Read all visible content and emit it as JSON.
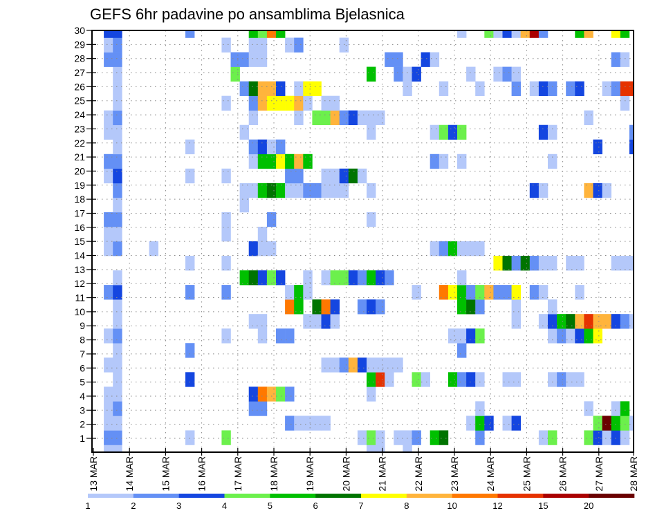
{
  "chart_data": {
    "type": "heatmap",
    "title": "GEFS 6hr padavine po ansamblima Bjelasnica",
    "xlabel": "",
    "ylabel": "",
    "x_unit": "6-hour steps from 13 MAR 00Z",
    "x_ticks": [
      "13 MAR",
      "14 MAR",
      "15 MAR",
      "16 MAR",
      "17 MAR",
      "18 MAR",
      "19 MAR",
      "20 MAR",
      "21 MAR",
      "22 MAR",
      "23 MAR",
      "24 MAR",
      "25 MAR",
      "26 MAR",
      "27 MAR",
      "28 MAR"
    ],
    "y_ticks": [
      "1",
      "2",
      "3",
      "4",
      "5",
      "6",
      "7",
      "8",
      "9",
      "10",
      "11",
      "12",
      "13",
      "14",
      "15",
      "16",
      "17",
      "18",
      "19",
      "20",
      "21",
      "22",
      "23",
      "24",
      "25",
      "26",
      "27",
      "28",
      "29",
      "30"
    ],
    "ylim": [
      1,
      30
    ],
    "columns": 60,
    "grid": true,
    "colorbar": {
      "placement": "bottom",
      "levels": [
        1,
        2,
        3,
        4,
        5,
        6,
        7,
        8,
        10,
        12,
        15,
        20
      ],
      "labels": [
        "1",
        "2",
        "3",
        "4",
        "5",
        "6",
        "7",
        "8",
        "10",
        "12",
        "15",
        "20"
      ],
      "colors": [
        "#b4c8fa",
        "#6490f5",
        "#1446e0",
        "#6cf04c",
        "#00c000",
        "#007400",
        "#ffff00",
        "#ffb43c",
        "#ff7800",
        "#e63200",
        "#aa0000",
        "#6a0000"
      ]
    },
    "rows": {
      "30": [
        [
          1,
          3
        ],
        [
          2,
          3
        ],
        [
          10,
          2
        ],
        [
          17,
          5
        ],
        [
          18,
          4
        ],
        [
          19,
          10
        ],
        [
          20,
          5
        ],
        [
          40,
          1
        ],
        [
          43,
          4
        ],
        [
          44,
          1
        ],
        [
          45,
          3
        ],
        [
          46,
          1
        ],
        [
          47,
          8
        ],
        [
          48,
          15
        ],
        [
          49,
          2
        ],
        [
          53,
          5
        ],
        [
          54,
          8
        ],
        [
          57,
          7
        ],
        [
          58,
          5
        ]
      ],
      "29": [
        [
          1,
          1
        ],
        [
          2,
          2
        ],
        [
          14,
          1
        ],
        [
          17,
          1
        ],
        [
          18,
          1
        ],
        [
          21,
          1
        ],
        [
          22,
          2
        ],
        [
          27,
          1
        ]
      ],
      "28": [
        [
          1,
          2
        ],
        [
          2,
          2
        ],
        [
          15,
          2
        ],
        [
          16,
          2
        ],
        [
          17,
          1
        ],
        [
          18,
          1
        ],
        [
          32,
          2
        ],
        [
          33,
          2
        ],
        [
          36,
          3
        ],
        [
          37,
          1
        ],
        [
          57,
          2
        ],
        [
          58,
          1
        ]
      ],
      "27": [
        [
          2,
          1
        ],
        [
          15,
          4
        ],
        [
          30,
          5
        ],
        [
          33,
          2
        ],
        [
          34,
          1
        ],
        [
          35,
          3
        ],
        [
          41,
          1
        ],
        [
          44,
          1
        ],
        [
          45,
          2
        ],
        [
          46,
          1
        ]
      ],
      "26": [
        [
          2,
          1
        ],
        [
          16,
          2
        ],
        [
          17,
          6
        ],
        [
          18,
          8
        ],
        [
          19,
          8
        ],
        [
          20,
          3
        ],
        [
          22,
          1
        ],
        [
          23,
          7
        ],
        [
          24,
          7
        ],
        [
          34,
          1
        ],
        [
          38,
          1
        ],
        [
          42,
          1
        ],
        [
          46,
          2
        ],
        [
          48,
          1
        ],
        [
          49,
          3
        ],
        [
          50,
          2
        ],
        [
          52,
          2
        ],
        [
          53,
          3
        ],
        [
          56,
          1
        ],
        [
          57,
          2
        ],
        [
          58,
          12
        ],
        [
          59,
          12
        ]
      ],
      "25": [
        [
          2,
          1
        ],
        [
          14,
          1
        ],
        [
          17,
          2
        ],
        [
          18,
          8
        ],
        [
          19,
          7
        ],
        [
          20,
          7
        ],
        [
          21,
          7
        ],
        [
          22,
          8
        ],
        [
          23,
          1
        ],
        [
          25,
          1
        ],
        [
          26,
          1
        ],
        [
          58,
          1
        ]
      ],
      "24": [
        [
          1,
          1
        ],
        [
          2,
          2
        ],
        [
          17,
          1
        ],
        [
          22,
          1
        ],
        [
          24,
          4
        ],
        [
          25,
          4
        ],
        [
          26,
          8
        ],
        [
          27,
          2
        ],
        [
          28,
          3
        ],
        [
          29,
          1
        ],
        [
          30,
          1
        ],
        [
          31,
          1
        ],
        [
          54,
          1
        ]
      ],
      "23": [
        [
          1,
          1
        ],
        [
          2,
          1
        ],
        [
          16,
          1
        ],
        [
          30,
          1
        ],
        [
          37,
          1
        ],
        [
          38,
          4
        ],
        [
          39,
          3
        ],
        [
          40,
          4
        ],
        [
          49,
          3
        ],
        [
          50,
          1
        ],
        [
          59,
          2
        ]
      ],
      "22": [
        [
          2,
          1
        ],
        [
          10,
          1
        ],
        [
          17,
          2
        ],
        [
          18,
          3
        ],
        [
          19,
          1
        ],
        [
          20,
          2
        ],
        [
          55,
          3
        ],
        [
          59,
          3
        ]
      ],
      "21": [
        [
          1,
          2
        ],
        [
          2,
          2
        ],
        [
          17,
          1
        ],
        [
          18,
          5
        ],
        [
          19,
          5
        ],
        [
          20,
          7
        ],
        [
          21,
          5
        ],
        [
          22,
          8
        ],
        [
          23,
          5
        ],
        [
          37,
          2
        ],
        [
          38,
          1
        ],
        [
          40,
          1
        ],
        [
          50,
          1
        ]
      ],
      "20": [
        [
          1,
          1
        ],
        [
          2,
          3
        ],
        [
          10,
          1
        ],
        [
          14,
          1
        ],
        [
          21,
          2
        ],
        [
          22,
          2
        ],
        [
          25,
          1
        ],
        [
          26,
          1
        ],
        [
          27,
          3
        ],
        [
          28,
          6
        ],
        [
          29,
          1
        ]
      ],
      "19": [
        [
          2,
          2
        ],
        [
          16,
          1
        ],
        [
          17,
          1
        ],
        [
          18,
          5
        ],
        [
          19,
          6
        ],
        [
          20,
          5
        ],
        [
          21,
          1
        ],
        [
          22,
          1
        ],
        [
          23,
          2
        ],
        [
          24,
          2
        ],
        [
          25,
          1
        ],
        [
          26,
          1
        ],
        [
          27,
          1
        ],
        [
          30,
          1
        ],
        [
          48,
          3
        ],
        [
          49,
          1
        ],
        [
          54,
          8
        ],
        [
          55,
          3
        ],
        [
          56,
          1
        ]
      ],
      "18": [
        [
          2,
          1
        ],
        [
          16,
          1
        ]
      ],
      "17": [
        [
          1,
          2
        ],
        [
          2,
          2
        ],
        [
          14,
          1
        ],
        [
          19,
          2
        ],
        [
          30,
          1
        ]
      ],
      "16": [
        [
          1,
          1
        ],
        [
          2,
          1
        ],
        [
          14,
          1
        ],
        [
          18,
          1
        ]
      ],
      "15": [
        [
          1,
          1
        ],
        [
          2,
          2
        ],
        [
          6,
          1
        ],
        [
          17,
          3
        ],
        [
          18,
          1
        ],
        [
          19,
          1
        ],
        [
          37,
          1
        ],
        [
          38,
          2
        ],
        [
          39,
          5
        ],
        [
          40,
          1
        ],
        [
          41,
          1
        ],
        [
          42,
          1
        ]
      ],
      "14": [
        [
          10,
          1
        ],
        [
          14,
          1
        ],
        [
          44,
          7
        ],
        [
          45,
          6
        ],
        [
          46,
          2
        ],
        [
          47,
          6
        ],
        [
          48,
          2
        ],
        [
          49,
          1
        ],
        [
          50,
          1
        ],
        [
          52,
          1
        ],
        [
          53,
          1
        ],
        [
          57,
          1
        ],
        [
          58,
          1
        ],
        [
          59,
          1
        ]
      ],
      "13": [
        [
          2,
          1
        ],
        [
          16,
          5
        ],
        [
          17,
          6
        ],
        [
          18,
          3
        ],
        [
          19,
          4
        ],
        [
          20,
          3
        ],
        [
          23,
          1
        ],
        [
          25,
          1
        ],
        [
          26,
          4
        ],
        [
          27,
          4
        ],
        [
          28,
          3
        ],
        [
          29,
          2
        ],
        [
          30,
          5
        ],
        [
          31,
          3
        ],
        [
          32,
          2
        ],
        [
          40,
          1
        ]
      ],
      "12": [
        [
          1,
          2
        ],
        [
          2,
          3
        ],
        [
          10,
          2
        ],
        [
          14,
          2
        ],
        [
          21,
          1
        ],
        [
          22,
          5
        ],
        [
          23,
          1
        ],
        [
          35,
          1
        ],
        [
          38,
          10
        ],
        [
          39,
          7
        ],
        [
          40,
          5
        ],
        [
          41,
          2
        ],
        [
          42,
          4
        ],
        [
          43,
          8
        ],
        [
          44,
          2
        ],
        [
          45,
          2
        ],
        [
          46,
          7
        ],
        [
          48,
          2
        ],
        [
          49,
          1
        ],
        [
          53,
          1
        ]
      ],
      "11": [
        [
          2,
          1
        ],
        [
          21,
          10
        ],
        [
          22,
          5
        ],
        [
          24,
          6
        ],
        [
          25,
          10
        ],
        [
          26,
          3
        ],
        [
          29,
          2
        ],
        [
          30,
          3
        ],
        [
          31,
          2
        ],
        [
          40,
          5
        ],
        [
          41,
          6
        ],
        [
          42,
          2
        ],
        [
          46,
          1
        ],
        [
          50,
          1
        ]
      ],
      "10": [
        [
          2,
          1
        ],
        [
          17,
          1
        ],
        [
          18,
          1
        ],
        [
          23,
          1
        ],
        [
          24,
          1
        ],
        [
          25,
          3
        ],
        [
          26,
          1
        ],
        [
          46,
          1
        ],
        [
          49,
          1
        ],
        [
          50,
          3
        ],
        [
          51,
          5
        ],
        [
          52,
          6
        ],
        [
          53,
          8
        ],
        [
          54,
          12
        ],
        [
          55,
          8
        ],
        [
          56,
          8
        ],
        [
          57,
          3
        ],
        [
          58,
          2
        ],
        [
          59,
          1
        ]
      ],
      "9": [
        [
          1,
          1
        ],
        [
          2,
          2
        ],
        [
          14,
          1
        ],
        [
          18,
          1
        ],
        [
          20,
          2
        ],
        [
          21,
          2
        ],
        [
          39,
          1
        ],
        [
          40,
          1
        ],
        [
          41,
          3
        ],
        [
          42,
          4
        ],
        [
          50,
          1
        ],
        [
          51,
          2
        ],
        [
          52,
          1
        ],
        [
          53,
          3
        ],
        [
          54,
          5
        ],
        [
          55,
          7
        ]
      ],
      "8": [
        [
          2,
          1
        ],
        [
          10,
          2
        ],
        [
          40,
          2
        ]
      ],
      "7": [
        [
          1,
          1
        ],
        [
          2,
          1
        ],
        [
          25,
          1
        ],
        [
          26,
          1
        ],
        [
          27,
          2
        ],
        [
          28,
          8
        ],
        [
          29,
          3
        ],
        [
          30,
          1
        ],
        [
          31,
          1
        ],
        [
          32,
          1
        ],
        [
          33,
          1
        ]
      ],
      "6": [
        [
          2,
          1
        ],
        [
          10,
          3
        ],
        [
          30,
          5
        ],
        [
          31,
          12
        ],
        [
          32,
          1
        ],
        [
          35,
          4
        ],
        [
          36,
          1
        ],
        [
          39,
          5
        ],
        [
          40,
          2
        ],
        [
          41,
          3
        ],
        [
          42,
          1
        ],
        [
          45,
          1
        ],
        [
          46,
          1
        ],
        [
          50,
          1
        ],
        [
          51,
          2
        ],
        [
          52,
          1
        ],
        [
          53,
          1
        ]
      ],
      "5": [
        [
          1,
          1
        ],
        [
          2,
          1
        ],
        [
          17,
          3
        ],
        [
          18,
          10
        ],
        [
          19,
          8
        ],
        [
          20,
          4
        ],
        [
          21,
          2
        ],
        [
          30,
          1
        ]
      ],
      "4": [
        [
          1,
          1
        ],
        [
          2,
          2
        ],
        [
          17,
          2
        ],
        [
          18,
          2
        ],
        [
          42,
          1
        ],
        [
          54,
          1
        ],
        [
          57,
          1
        ],
        [
          58,
          5
        ]
      ],
      "3": [
        [
          1,
          1
        ],
        [
          2,
          1
        ],
        [
          21,
          2
        ],
        [
          22,
          1
        ],
        [
          23,
          1
        ],
        [
          24,
          1
        ],
        [
          25,
          1
        ],
        [
          41,
          1
        ],
        [
          42,
          5
        ],
        [
          43,
          3
        ],
        [
          45,
          1
        ],
        [
          46,
          3
        ],
        [
          55,
          4
        ],
        [
          56,
          20
        ],
        [
          57,
          5
        ],
        [
          58,
          4
        ],
        [
          59,
          1
        ]
      ],
      "2": [
        [
          1,
          2
        ],
        [
          2,
          2
        ],
        [
          10,
          1
        ],
        [
          14,
          4
        ],
        [
          29,
          1
        ],
        [
          30,
          4
        ],
        [
          31,
          1
        ],
        [
          33,
          1
        ],
        [
          34,
          1
        ],
        [
          35,
          2
        ],
        [
          37,
          5
        ],
        [
          38,
          6
        ],
        [
          42,
          2
        ],
        [
          49,
          1
        ],
        [
          50,
          4
        ],
        [
          54,
          4
        ],
        [
          55,
          3
        ],
        [
          56,
          1
        ],
        [
          57,
          3
        ],
        [
          58,
          1
        ]
      ],
      "1": [
        [
          1,
          1
        ],
        [
          2,
          1
        ],
        [
          30,
          1
        ],
        [
          31,
          1
        ],
        [
          34,
          1
        ]
      ]
    }
  }
}
